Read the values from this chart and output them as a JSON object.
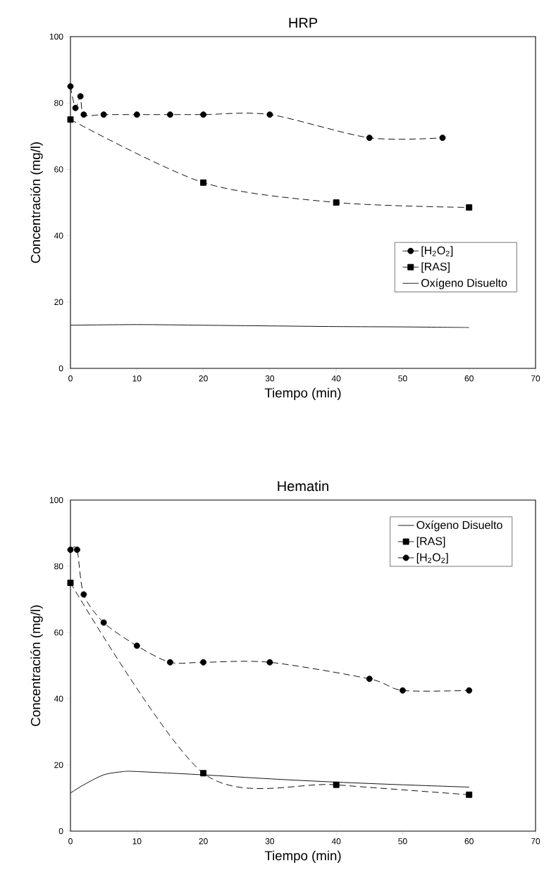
{
  "chart_data": [
    {
      "type": "line",
      "title": "HRP",
      "xlabel": "Tiempo (min)",
      "ylabel": "Concentración (mg/l)",
      "xlim": [
        0,
        70
      ],
      "ylim": [
        0,
        100
      ],
      "xticks": [
        0,
        10,
        20,
        30,
        40,
        50,
        60,
        70
      ],
      "yticks": [
        0,
        20,
        40,
        60,
        80,
        100
      ],
      "legend": "right",
      "grid": false,
      "series": [
        {
          "name": "[H$_{2}$O$_{2}$]",
          "color": "#000000",
          "marker": "circle",
          "line_style": "dashed",
          "x": [
            0,
            0.75,
            1.5,
            2,
            5,
            10,
            15,
            20,
            30,
            45,
            56
          ],
          "values": [
            85,
            78.5,
            82,
            76.5,
            76.5,
            76.5,
            76.5,
            76.5,
            76.5,
            69.5,
            69.5
          ]
        },
        {
          "name": "[RAS]",
          "color": "#000000",
          "marker": "square",
          "line_style": "dashed",
          "x": [
            0,
            20,
            40,
            60
          ],
          "values": [
            75,
            56,
            50,
            48.5
          ]
        },
        {
          "name": "Oxígeno Disuelto",
          "color": "#000000",
          "marker": "none",
          "line_style": "solid",
          "x": [
            0,
            10,
            20,
            30,
            40,
            50,
            60
          ],
          "values": [
            13,
            13.2,
            13,
            12.8,
            12.6,
            12.5,
            12.3
          ]
        }
      ]
    },
    {
      "type": "line",
      "title": "Hematin",
      "xlabel": "Tiempo (min)",
      "ylabel": "Concentración (mg/l)",
      "xlim": [
        0,
        70
      ],
      "ylim": [
        0,
        100
      ],
      "xticks": [
        0,
        10,
        20,
        30,
        40,
        50,
        60,
        70
      ],
      "yticks": [
        0,
        20,
        40,
        60,
        80,
        100
      ],
      "legend": "top right",
      "grid": false,
      "series": [
        {
          "name": "Oxígeno Disuelto",
          "color": "#000000",
          "marker": "none",
          "line_style": "solid",
          "x": [
            0,
            2,
            5,
            8,
            10,
            20,
            30,
            40,
            50,
            60
          ],
          "values": [
            11.5,
            14,
            17,
            18,
            18,
            17,
            15.8,
            14.8,
            14,
            13.3
          ]
        },
        {
          "name": "[RAS]",
          "color": "#000000",
          "marker": "square",
          "line_style": "dashed",
          "x": [
            0,
            20,
            40,
            60
          ],
          "values": [
            75,
            17.5,
            14,
            11
          ]
        },
        {
          "name": "[H$_{2}$O$_{2}$]",
          "color": "#000000",
          "marker": "circle",
          "line_style": "dashed",
          "x": [
            0,
            1,
            2,
            5,
            10,
            15,
            20,
            30,
            45,
            50,
            60
          ],
          "values": [
            85,
            85,
            71.5,
            63,
            56,
            51,
            51,
            51,
            46,
            42.5,
            42.5
          ]
        }
      ]
    }
  ]
}
